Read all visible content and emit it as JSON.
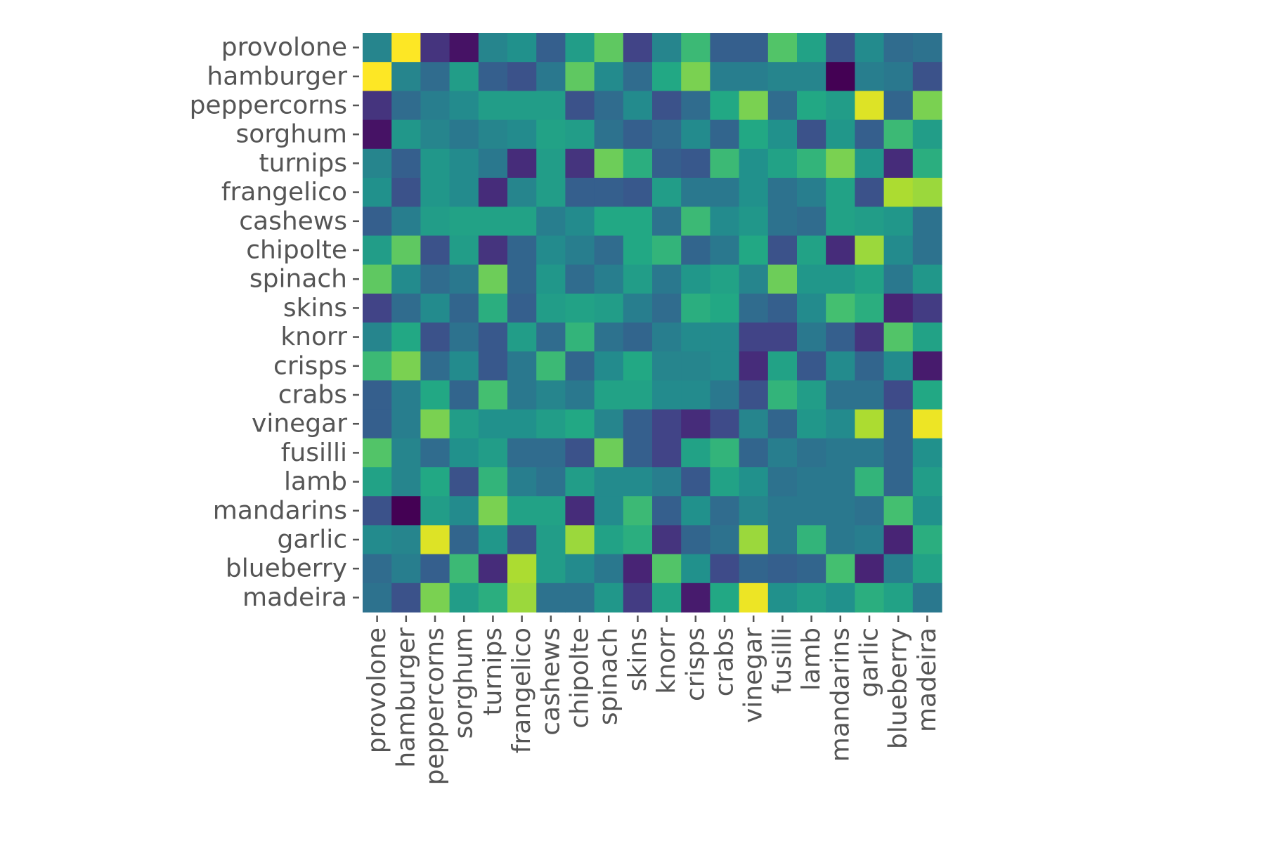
{
  "chart_data": {
    "type": "heatmap",
    "title": "",
    "xlabel": "",
    "ylabel": "",
    "colormap": "viridis",
    "vmin": -1,
    "vmax": 1,
    "colorbar": false,
    "grid": false,
    "tick_color": "#555555",
    "label_color": "#555555",
    "rows": [
      "provolone",
      "hamburger",
      "peppercorns",
      "sorghum",
      "turnips",
      "frangelico",
      "cashews",
      "chipolte",
      "spinach",
      "skins",
      "knorr",
      "crisps",
      "crabs",
      "vinegar",
      "fusilli",
      "lamb",
      "mandarins",
      "garlic",
      "blueberry",
      "madeira"
    ],
    "cols": [
      "provolone",
      "hamburger",
      "peppercorns",
      "sorghum",
      "turnips",
      "frangelico",
      "cashews",
      "chipolte",
      "spinach",
      "skins",
      "knorr",
      "crisps",
      "crabs",
      "vinegar",
      "fusilli",
      "lamb",
      "mandarins",
      "garlic",
      "blueberry",
      "madeira"
    ],
    "values": [
      [
        -0.1,
        1.0,
        -0.7,
        -0.9,
        -0.1,
        0.0,
        -0.4,
        0.1,
        0.5,
        -0.6,
        -0.1,
        0.35,
        -0.4,
        -0.4,
        0.45,
        0.15,
        -0.5,
        -0.05,
        -0.3,
        -0.25
      ],
      [
        1.0,
        -0.1,
        -0.3,
        0.1,
        -0.4,
        -0.5,
        -0.2,
        0.5,
        -0.05,
        -0.3,
        0.2,
        0.6,
        -0.15,
        -0.15,
        -0.1,
        -0.1,
        -1.0,
        -0.15,
        -0.2,
        -0.5
      ],
      [
        -0.7,
        -0.3,
        -0.15,
        -0.05,
        0.1,
        0.1,
        0.1,
        -0.5,
        -0.3,
        -0.05,
        -0.5,
        -0.3,
        0.2,
        0.6,
        -0.3,
        0.2,
        0.1,
        0.9,
        -0.35,
        0.6
      ],
      [
        -0.9,
        0.05,
        -0.1,
        -0.2,
        -0.1,
        -0.05,
        0.15,
        0.1,
        -0.25,
        -0.4,
        -0.3,
        -0.05,
        -0.35,
        0.2,
        0.0,
        -0.5,
        0.05,
        -0.4,
        0.35,
        0.1
      ],
      [
        -0.1,
        -0.4,
        0.05,
        -0.05,
        -0.2,
        -0.75,
        0.1,
        -0.7,
        0.55,
        0.25,
        -0.4,
        -0.45,
        0.35,
        0.0,
        0.15,
        0.3,
        0.6,
        0.05,
        -0.75,
        0.25
      ],
      [
        0.0,
        -0.5,
        0.05,
        -0.05,
        -0.75,
        -0.1,
        0.1,
        -0.4,
        -0.4,
        -0.45,
        0.1,
        -0.2,
        -0.2,
        0.0,
        -0.25,
        -0.15,
        0.15,
        -0.5,
        0.75,
        0.7
      ],
      [
        -0.4,
        -0.15,
        0.1,
        0.15,
        0.15,
        0.15,
        -0.15,
        -0.05,
        0.2,
        0.2,
        -0.25,
        0.35,
        -0.05,
        0.05,
        -0.25,
        -0.3,
        0.15,
        0.1,
        0.05,
        -0.25
      ],
      [
        0.1,
        0.5,
        -0.5,
        0.1,
        -0.7,
        -0.35,
        -0.05,
        -0.15,
        -0.3,
        0.2,
        0.3,
        -0.35,
        -0.2,
        0.2,
        -0.5,
        0.15,
        -0.75,
        0.7,
        -0.05,
        -0.25
      ],
      [
        0.5,
        -0.05,
        -0.3,
        -0.2,
        0.55,
        -0.35,
        0.05,
        -0.3,
        -0.15,
        0.1,
        -0.2,
        0.05,
        0.15,
        -0.1,
        0.55,
        0.05,
        0.05,
        0.15,
        -0.2,
        0.05
      ],
      [
        -0.6,
        -0.3,
        -0.05,
        -0.35,
        0.25,
        -0.4,
        0.1,
        0.15,
        0.1,
        -0.15,
        -0.3,
        0.25,
        0.2,
        -0.3,
        -0.4,
        -0.05,
        0.4,
        0.25,
        -0.8,
        -0.65
      ],
      [
        -0.1,
        0.2,
        -0.5,
        -0.25,
        -0.45,
        0.1,
        -0.3,
        0.3,
        -0.25,
        -0.35,
        -0.15,
        -0.05,
        -0.05,
        -0.6,
        -0.6,
        -0.2,
        -0.4,
        -0.7,
        0.45,
        0.15
      ],
      [
        0.35,
        0.6,
        -0.3,
        -0.05,
        -0.45,
        -0.2,
        0.35,
        -0.35,
        -0.05,
        0.2,
        -0.1,
        -0.1,
        -0.05,
        -0.75,
        0.15,
        -0.45,
        -0.05,
        -0.35,
        -0.05,
        -0.85
      ],
      [
        -0.4,
        -0.15,
        0.2,
        -0.35,
        0.4,
        -0.2,
        -0.1,
        -0.2,
        0.15,
        0.15,
        -0.05,
        -0.05,
        -0.2,
        -0.5,
        0.3,
        0.1,
        -0.25,
        -0.25,
        -0.55,
        0.2
      ],
      [
        -0.4,
        -0.15,
        0.6,
        0.1,
        0.0,
        0.0,
        0.1,
        0.2,
        -0.1,
        -0.4,
        -0.6,
        -0.75,
        -0.55,
        -0.1,
        -0.35,
        0.05,
        -0.05,
        0.75,
        -0.35,
        0.95
      ],
      [
        0.45,
        -0.1,
        -0.3,
        0.0,
        0.1,
        -0.3,
        -0.3,
        -0.5,
        0.55,
        -0.4,
        -0.6,
        0.15,
        0.3,
        -0.35,
        -0.15,
        -0.25,
        -0.2,
        -0.2,
        -0.35,
        0.0
      ],
      [
        0.15,
        -0.1,
        0.2,
        -0.5,
        0.3,
        -0.15,
        -0.25,
        0.1,
        -0.05,
        -0.05,
        -0.15,
        -0.45,
        0.15,
        0.0,
        -0.25,
        -0.2,
        -0.2,
        0.3,
        -0.35,
        0.1
      ],
      [
        -0.5,
        -1.0,
        0.1,
        -0.05,
        0.6,
        0.15,
        0.15,
        -0.75,
        -0.05,
        0.35,
        -0.4,
        0.0,
        -0.3,
        -0.1,
        -0.2,
        -0.2,
        -0.2,
        -0.25,
        0.4,
        0.0
      ],
      [
        -0.05,
        -0.1,
        0.9,
        -0.35,
        0.05,
        -0.5,
        0.1,
        0.7,
        0.15,
        0.25,
        -0.7,
        -0.35,
        -0.25,
        0.7,
        -0.2,
        0.3,
        -0.2,
        -0.15,
        -0.8,
        0.25
      ],
      [
        -0.3,
        -0.15,
        -0.4,
        0.35,
        -0.75,
        0.75,
        0.1,
        -0.05,
        -0.2,
        -0.8,
        0.45,
        0.0,
        -0.55,
        -0.35,
        -0.4,
        -0.35,
        0.4,
        -0.8,
        -0.15,
        0.15
      ],
      [
        -0.25,
        -0.5,
        0.6,
        0.1,
        0.25,
        0.7,
        -0.25,
        -0.25,
        0.05,
        -0.65,
        0.15,
        -0.85,
        0.2,
        0.95,
        0.0,
        0.1,
        0.0,
        0.25,
        0.15,
        -0.2
      ]
    ]
  }
}
